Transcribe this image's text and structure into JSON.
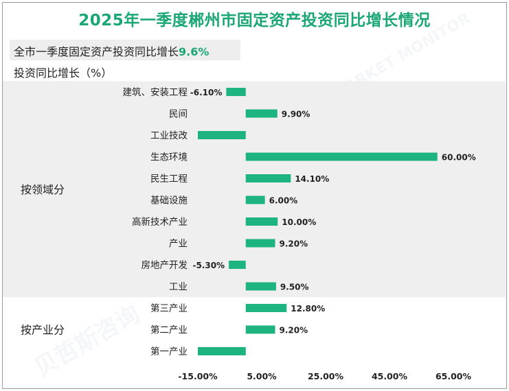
{
  "title": "2025年一季度郴州市固定资产投资同比增长情况",
  "summary": {
    "label": "全市一季度固定资产投资同比增长",
    "value": "9.6%"
  },
  "unit_label": "投资同比增长（%）",
  "watermark": {
    "text": "贝哲斯咨询",
    "sub": "MARKET MONITOR"
  },
  "colors": {
    "bar": "#1db47f",
    "title": "#1aa774",
    "group_bg": "#efefef"
  },
  "chart_data": {
    "type": "bar",
    "orientation": "horizontal",
    "title": "2025年一季度郴州市固定资产投资同比增长情况",
    "ylabel": "投资同比增长（%）",
    "xlim": [
      -15,
      65
    ],
    "xticks": [
      "-15.00%",
      "5.00%",
      "25.00%",
      "45.00%",
      "65.00%"
    ],
    "xtick_values": [
      -15,
      5,
      25,
      45,
      65
    ],
    "grid": false,
    "groups": [
      {
        "name": "按领域分",
        "items": [
          {
            "label": "建筑、安装工程",
            "value": -6.1,
            "value_label": "-6.10%"
          },
          {
            "label": "民间",
            "value": 9.9,
            "value_label": "9.90%"
          },
          {
            "label": "工业技改",
            "value": -15.0,
            "value_label": ""
          },
          {
            "label": "生态环境",
            "value": 60.0,
            "value_label": "60.00%"
          },
          {
            "label": "民生工程",
            "value": 14.1,
            "value_label": "14.10%"
          },
          {
            "label": "基础设施",
            "value": 6.0,
            "value_label": "6.00%"
          },
          {
            "label": "高新技术产业",
            "value": 10.0,
            "value_label": "10.00%"
          },
          {
            "label": "产业",
            "value": 9.2,
            "value_label": "9.20%"
          },
          {
            "label": "房地产开发",
            "value": -5.3,
            "value_label": "-5.30%"
          },
          {
            "label": "工业",
            "value": 9.5,
            "value_label": "9.50%"
          }
        ]
      },
      {
        "name": "按产业分",
        "items": [
          {
            "label": "第三产业",
            "value": 12.8,
            "value_label": "12.80%"
          },
          {
            "label": "第二产业",
            "value": 9.2,
            "value_label": "9.20%"
          },
          {
            "label": "第一产业",
            "value": -15.0,
            "value_label": ""
          }
        ]
      }
    ]
  }
}
